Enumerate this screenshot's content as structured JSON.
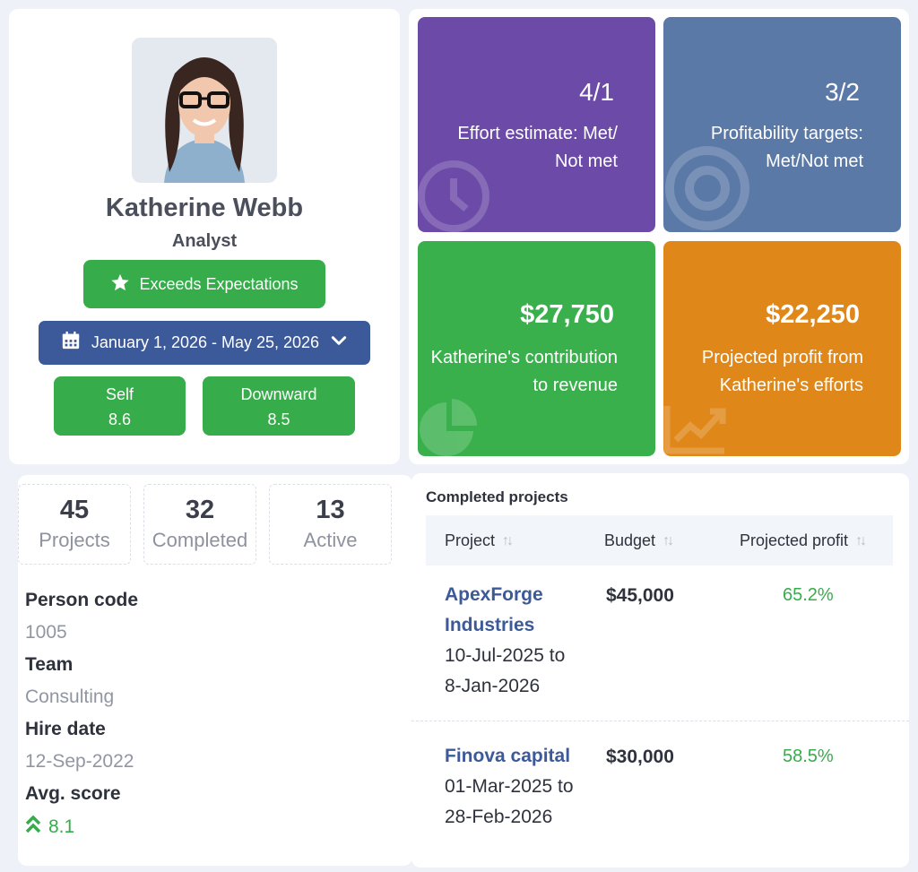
{
  "profile": {
    "name": "Katherine Webb",
    "role": "Analyst",
    "rating": "Exceeds Expectations",
    "date_range": "January 1, 2026 - May 25, 2026",
    "scores": [
      {
        "label": "Self",
        "value": "8.6"
      },
      {
        "label": "Downward",
        "value": "8.5"
      }
    ]
  },
  "kpis": {
    "effort": {
      "value": "4/1",
      "label_line1": "Effort estimate: Met/",
      "label_line2": "Not met"
    },
    "profitability": {
      "value": "3/2",
      "label_line1": "Profitability targets:",
      "label_line2": "Met/Not met"
    },
    "contribution": {
      "value": "$27,750",
      "label_line1": "Katherine's contribution",
      "label_line2": "to revenue"
    },
    "projected": {
      "value": "$22,250",
      "label_line1": "Projected profit from",
      "label_line2": "Katherine's efforts"
    }
  },
  "stats": [
    {
      "num": "45",
      "caption": "Projects"
    },
    {
      "num": "32",
      "caption": "Completed"
    },
    {
      "num": "13",
      "caption": "Active"
    }
  ],
  "details": {
    "person_code_label": "Person code",
    "person_code": "1005",
    "team_label": "Team",
    "team": "Consulting",
    "hire_date_label": "Hire date",
    "hire_date": "12-Sep-2022",
    "avg_score_label": "Avg. score",
    "avg_score": "8.1"
  },
  "projects": {
    "title": "Completed projects",
    "headers": [
      "Project",
      "Budget",
      "Projected profit"
    ],
    "rows": [
      {
        "name_line1": "ApexForge",
        "name_line2": "Industries",
        "dates_line1": "10-Jul-2025 to",
        "dates_line2": "8-Jan-2026",
        "budget": "$45,000",
        "profit": "65.2%"
      },
      {
        "name_line1": "Finova capital",
        "dates_line1": "01-Mar-2025 to",
        "dates_line2": "28-Feb-2026",
        "budget": "$30,000",
        "profit": "58.5%"
      }
    ]
  },
  "colors": {
    "green": "#36ad4a",
    "navy": "#3c5a99",
    "purple": "#6c4aa8",
    "slate": "#5b79a6",
    "orange": "#e08719"
  }
}
